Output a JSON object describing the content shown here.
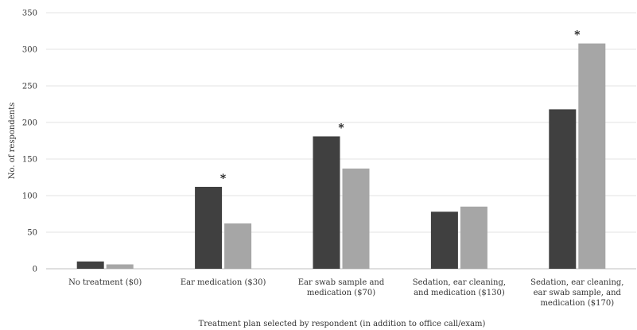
{
  "chart_data": {
    "type": "bar",
    "categories": [
      [
        "No treatment ($0)"
      ],
      [
        "Ear medication ($30)"
      ],
      [
        "Ear swab sample and",
        "medication ($70)"
      ],
      [
        "Sedation, ear cleaning,",
        "and medication ($130)"
      ],
      [
        "Sedation, ear cleaning,",
        "ear swab sample, and",
        "medication ($170)"
      ]
    ],
    "series": [
      {
        "values": [
          10,
          112,
          181,
          78,
          218
        ],
        "color": "#404040"
      },
      {
        "values": [
          6,
          62,
          137,
          85,
          308
        ],
        "color": "#a6a6a6"
      }
    ],
    "significance": [
      "",
      "*",
      "*",
      "",
      "*"
    ],
    "ylabel": "No. of respondents",
    "xlabel": "Treatment plan selected by respondent (in addition to office call/exam)",
    "ylim": [
      0,
      350
    ],
    "yticks": [
      0,
      50,
      100,
      150,
      200,
      250,
      300,
      350
    ],
    "grid": true,
    "legend": "none"
  }
}
